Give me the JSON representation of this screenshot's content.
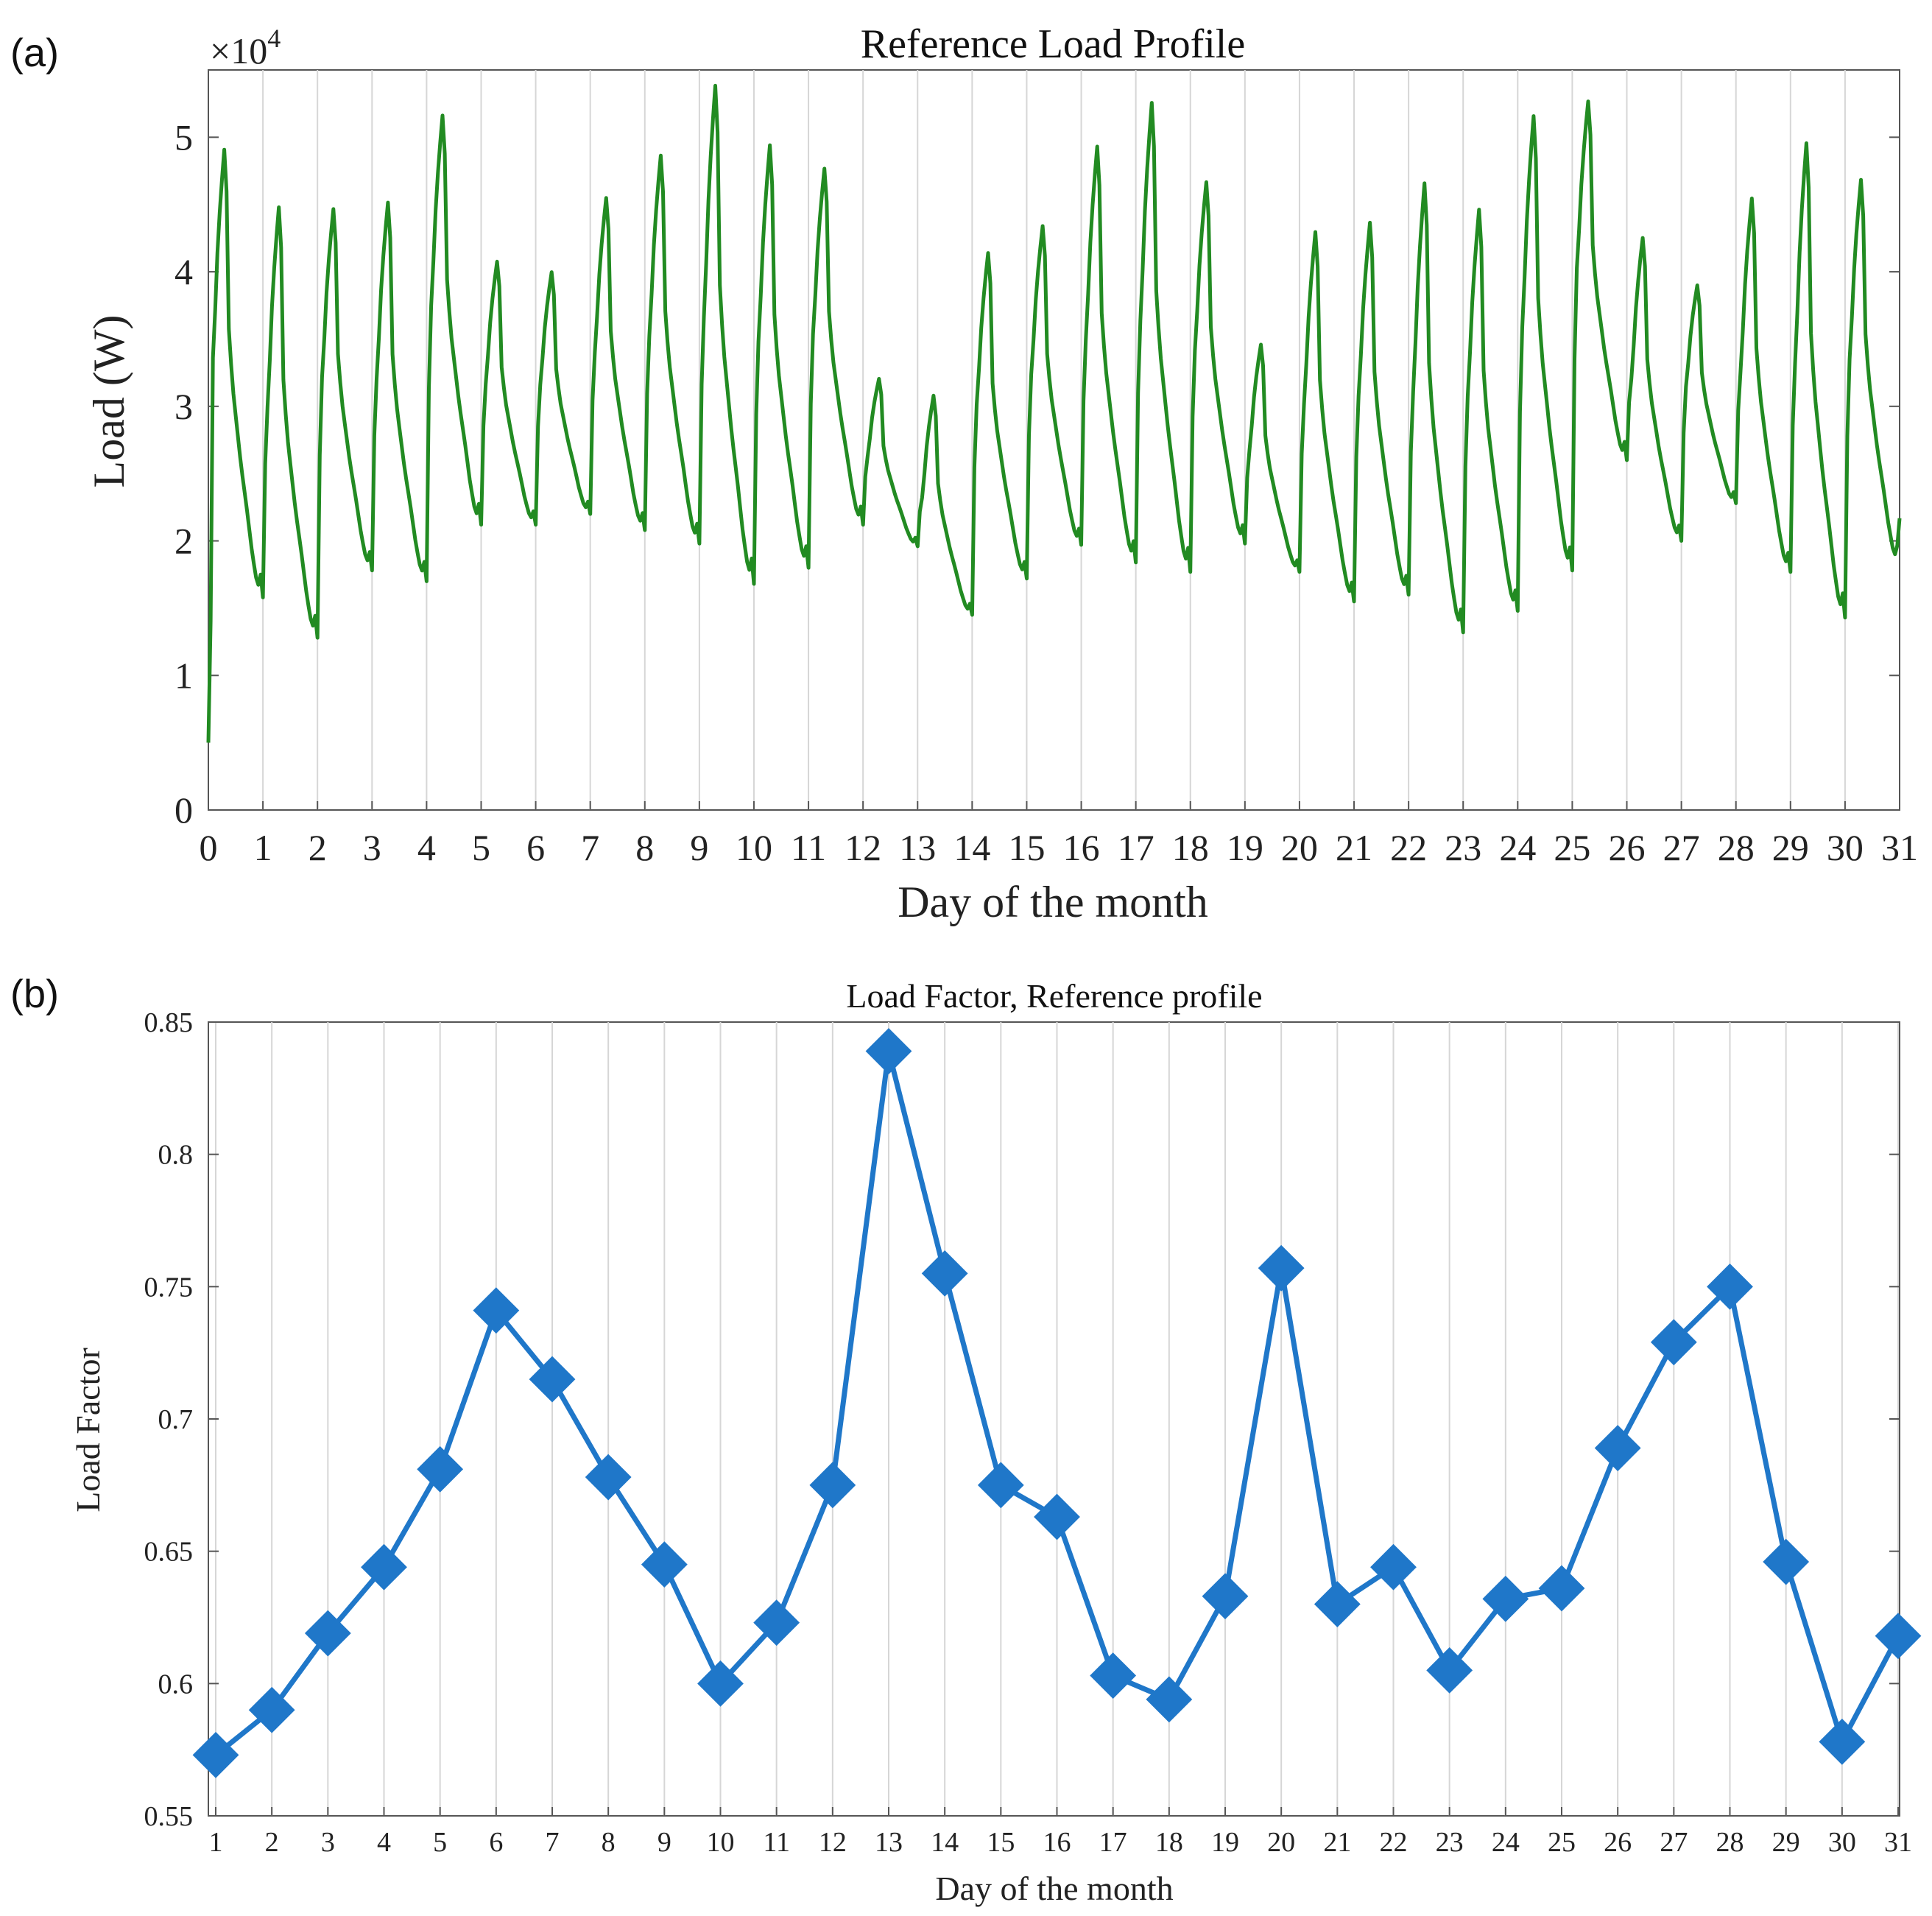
{
  "chart_data": [
    {
      "panel": "(a)",
      "type": "line",
      "title": "Reference Load Profile",
      "xlabel": "Day of the month",
      "ylabel": "Load (W)",
      "y_multiplier": "×10",
      "y_multiplier_exp": "4",
      "xlim": [
        0,
        31
      ],
      "ylim": [
        0,
        5.5
      ],
      "x_ticks": [
        "0",
        "1",
        "2",
        "3",
        "4",
        "5",
        "6",
        "7",
        "8",
        "9",
        "10",
        "11",
        "12",
        "13",
        "14",
        "15",
        "16",
        "17",
        "18",
        "19",
        "20",
        "21",
        "22",
        "23",
        "24",
        "25",
        "26",
        "27",
        "28",
        "29",
        "30",
        "31"
      ],
      "y_ticks": [
        "0",
        "1",
        "2",
        "3",
        "4",
        "5"
      ],
      "grid": "vertical",
      "line_color": "#228b22",
      "daily_peaks": [
        4.95,
        4.52,
        4.5,
        4.55,
        5.2,
        4.1,
        4.02,
        4.58,
        4.9,
        5.43,
        4.98,
        4.8,
        3.22,
        3.1,
        4.17,
        4.37,
        4.97,
        5.3,
        4.7,
        3.48,
        4.33,
        4.4,
        4.7,
        4.5,
        5.2,
        5.3,
        4.28,
        3.92,
        4.58,
        5.0,
        4.72
      ],
      "daily_troughs": [
        1.58,
        1.28,
        1.78,
        1.7,
        2.12,
        2.12,
        2.2,
        2.08,
        1.98,
        1.68,
        1.8,
        2.12,
        1.96,
        1.45,
        1.72,
        1.97,
        1.84,
        1.77,
        1.98,
        1.77,
        1.55,
        1.6,
        1.32,
        1.48,
        1.78,
        2.6,
        2.0,
        2.28,
        1.77,
        1.43,
        1.82
      ]
    },
    {
      "panel": "(b)",
      "type": "line",
      "title": "Load Factor, Reference profile",
      "xlabel": "Day of the month",
      "ylabel": "Load Factor",
      "marker": "diamond",
      "line_color": "#1f77c9",
      "xlim": [
        1,
        31
      ],
      "ylim": [
        0.55,
        0.85
      ],
      "grid": "vertical",
      "y_ticks": [
        "0.55",
        "0.6",
        "0.65",
        "0.7",
        "0.75",
        "0.8",
        "0.85"
      ],
      "categories": [
        "1",
        "2",
        "3",
        "4",
        "5",
        "6",
        "7",
        "8",
        "9",
        "10",
        "11",
        "12",
        "13",
        "14",
        "15",
        "16",
        "17",
        "18",
        "19",
        "20",
        "21",
        "22",
        "23",
        "24",
        "25",
        "26",
        "27",
        "28",
        "29",
        "30",
        "31"
      ],
      "values": [
        0.573,
        0.59,
        0.619,
        0.644,
        0.681,
        0.741,
        0.715,
        0.678,
        0.645,
        0.6,
        0.623,
        0.675,
        0.839,
        0.755,
        0.675,
        0.663,
        0.603,
        0.594,
        0.633,
        0.757,
        0.63,
        0.644,
        0.605,
        0.632,
        0.636,
        0.689,
        0.729,
        0.75,
        0.646,
        0.578,
        0.618
      ]
    }
  ]
}
